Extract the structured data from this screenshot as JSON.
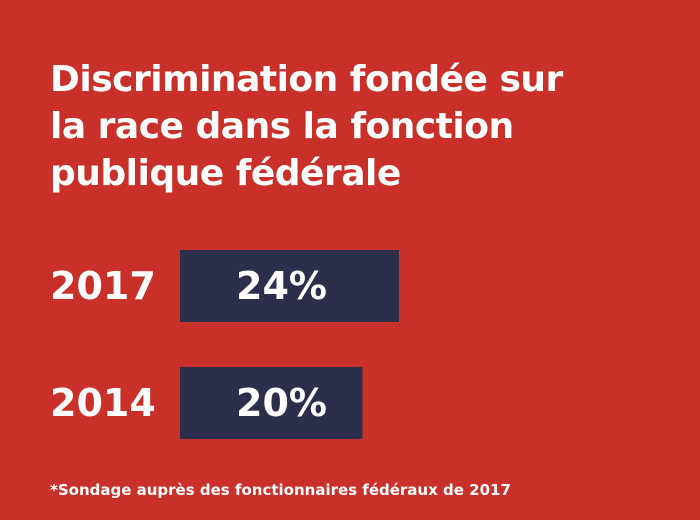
{
  "chart_data": {
    "type": "bar",
    "orientation": "horizontal",
    "title_lines": [
      "Discrimination fondée sur",
      "la race dans la fonction",
      "publique fédérale"
    ],
    "categories": [
      "2017",
      "2014"
    ],
    "values": [
      24,
      20
    ],
    "value_labels": [
      "24%",
      "20%"
    ],
    "unit": "%",
    "footnote": "*Sondage auprès des fonctionnaires fédéraux de 2017",
    "grid": false,
    "legend": "none"
  },
  "colors": {
    "background": "#c9302a",
    "bar": "#2c2f4b",
    "text": "#ffffff"
  }
}
